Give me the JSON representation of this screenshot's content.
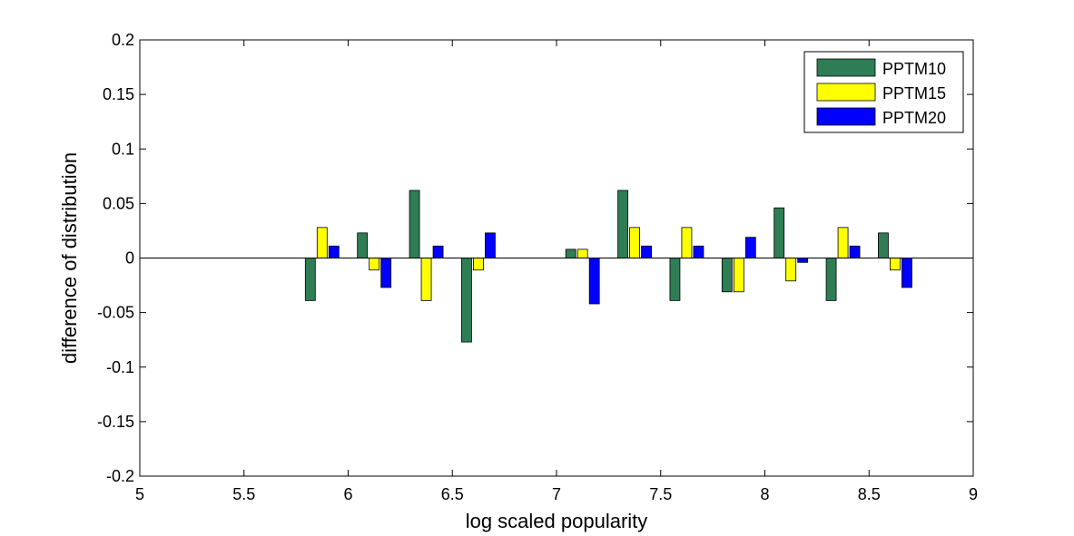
{
  "chart_data": {
    "type": "bar",
    "xlabel": "log scaled popularity",
    "ylabel": "difference of distribution",
    "xlim": [
      5,
      9
    ],
    "ylim": [
      -0.2,
      0.2
    ],
    "x_ticks": [
      "5",
      "5.5",
      "6",
      "6.5",
      "7",
      "7.5",
      "8",
      "8.5",
      "9"
    ],
    "y_ticks": [
      "-0.2",
      "-0.15",
      "-0.1",
      "-0.05",
      "0",
      "0.05",
      "0.1",
      "0.15",
      "0.2"
    ],
    "grid": false,
    "legend_position": "top-right",
    "x": [
      5.125,
      5.375,
      5.625,
      5.875,
      6.125,
      6.375,
      6.625,
      6.875,
      7.125,
      7.375,
      7.625,
      7.875,
      8.125,
      8.375,
      8.625,
      8.875
    ],
    "series": [
      {
        "name": "PPTM10",
        "color": "#2e7d55",
        "values": [
          0,
          0,
          0,
          -0.039,
          0.023,
          0.062,
          -0.077,
          0,
          0.008,
          0.062,
          -0.039,
          -0.031,
          0.046,
          -0.039,
          0.023,
          0
        ]
      },
      {
        "name": "PPTM15",
        "color": "#ffff00",
        "values": [
          0,
          0,
          0,
          0.028,
          -0.011,
          -0.039,
          -0.011,
          0,
          0.008,
          0.028,
          0.028,
          -0.031,
          -0.021,
          0.028,
          -0.011,
          0
        ]
      },
      {
        "name": "PPTM20",
        "color": "#0000ff",
        "values": [
          0,
          0,
          0,
          0.011,
          -0.027,
          0.011,
          0.023,
          0,
          -0.042,
          0.011,
          0.011,
          0.019,
          -0.004,
          0.011,
          -0.027,
          0
        ]
      }
    ]
  }
}
